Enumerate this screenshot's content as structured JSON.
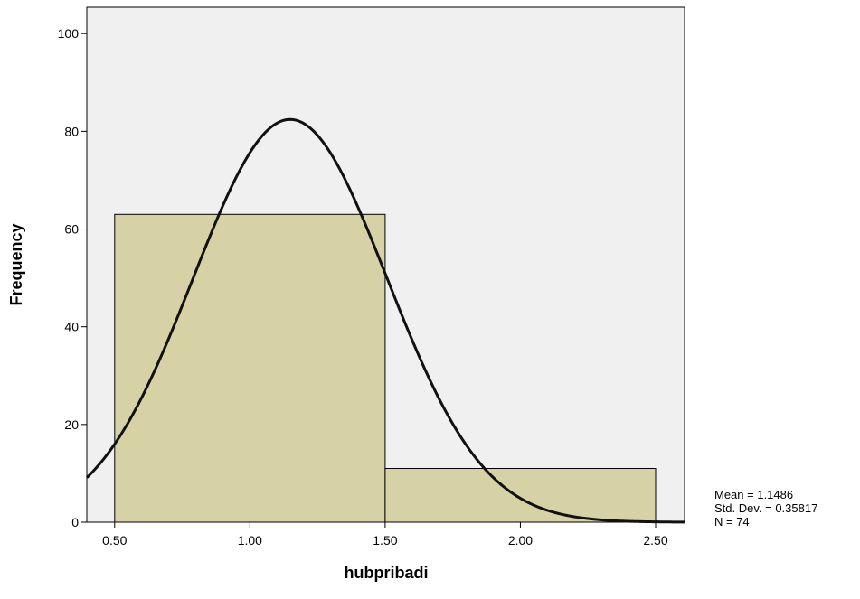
{
  "chart_data": {
    "type": "histogram",
    "x_label": "hubpribadi",
    "y_label": "Frequency",
    "bins": [
      0.5,
      1.5,
      2.5
    ],
    "counts": [
      63,
      11
    ],
    "color": "#d7d2a6",
    "background": "#f0f0f0",
    "xlim": [
      0.397,
      2.607
    ],
    "ylim": [
      0,
      105.4
    ],
    "xticks": [
      {
        "value": 0.5,
        "label": "0.50"
      },
      {
        "value": 1,
        "label": "1.00"
      },
      {
        "value": 1.5,
        "label": "1.50"
      },
      {
        "value": 2,
        "label": "2.00"
      },
      {
        "value": 2.5,
        "label": "2.50"
      }
    ],
    "yticks": [
      0,
      20,
      40,
      60,
      80,
      100
    ],
    "normal_curve": {
      "mean": 1.1486,
      "std_dev": 0.35817,
      "n": 74
    },
    "annotations": [
      "Mean = 1.1486",
      "Std. Dev. = 0.35817",
      "N = 74"
    ]
  }
}
